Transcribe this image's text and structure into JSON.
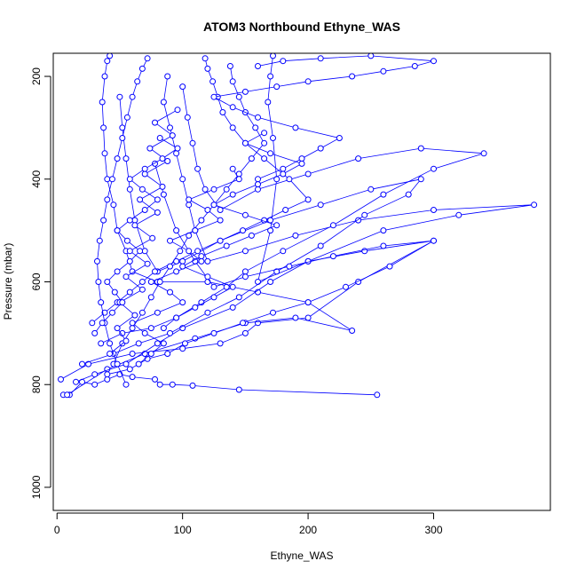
{
  "chart_data": {
    "type": "scatter",
    "title": "ATOM3 Northbound Ethyne_WAS",
    "xlabel": "Ethyne_WAS",
    "ylabel": "Pressure (mbar)",
    "xlim": [
      -3,
      393
    ],
    "ylim": [
      1045,
      155
    ],
    "y_inverted": true,
    "x_ticks": [
      0,
      100,
      200,
      300
    ],
    "y_ticks": [
      200,
      400,
      600,
      800,
      1000
    ],
    "grid": false,
    "legend": "none",
    "series_color": "#0000ff",
    "series": [
      {
        "x": [
          255,
          145,
          108,
          92,
          82,
          78,
          60,
          50,
          40,
          30,
          20,
          10,
          5
        ],
        "y": [
          820,
          810,
          802,
          800,
          800,
          790,
          785,
          780,
          790,
          800,
          795,
          820,
          820
        ]
      },
      {
        "x": [
          3,
          25,
          60,
          100,
          130,
          150,
          160,
          200,
          240,
          300,
          245,
          200,
          160,
          170,
          175,
          172,
          168,
          170,
          172
        ],
        "y": [
          790,
          760,
          740,
          730,
          720,
          700,
          680,
          670,
          600,
          520,
          540,
          560,
          600,
          500,
          400,
          320,
          250,
          200,
          160
        ]
      },
      {
        "x": [
          8,
          40,
          70,
          110,
          150,
          190,
          235,
          200,
          160,
          120,
          80,
          60,
          55,
          48,
          45,
          40,
          38,
          37,
          36,
          38,
          40,
          42
        ],
        "y": [
          820,
          770,
          740,
          710,
          680,
          670,
          695,
          640,
          620,
          600,
          600,
          580,
          540,
          500,
          450,
          400,
          350,
          300,
          250,
          200,
          170,
          160
        ]
      },
      {
        "x": [
          15,
          30,
          55,
          80,
          100,
          140,
          170,
          200,
          260,
          320,
          380,
          300,
          240,
          190,
          150,
          120,
          110,
          105,
          100,
          95,
          90,
          85,
          88
        ],
        "y": [
          795,
          780,
          760,
          720,
          690,
          650,
          600,
          560,
          500,
          470,
          450,
          460,
          480,
          510,
          540,
          560,
          500,
          450,
          400,
          350,
          300,
          250,
          200
        ]
      },
      {
        "x": [
          20,
          45,
          65,
          90,
          120,
          145,
          175,
          210,
          245,
          280,
          290,
          250,
          210,
          170,
          130,
          100,
          80,
          70,
          62,
          58,
          55,
          52,
          50
        ],
        "y": [
          760,
          740,
          720,
          700,
          660,
          630,
          580,
          530,
          470,
          430,
          400,
          420,
          450,
          480,
          520,
          560,
          580,
          540,
          480,
          420,
          360,
          300,
          240
        ]
      },
      {
        "x": [
          35,
          52,
          75,
          95,
          115,
          135,
          150,
          180,
          220,
          260,
          300,
          340,
          290,
          240,
          200,
          160,
          130,
          118,
          112,
          108,
          104,
          100
        ],
        "y": [
          720,
          700,
          690,
          670,
          640,
          610,
          580,
          540,
          490,
          430,
          380,
          350,
          340,
          360,
          390,
          420,
          460,
          420,
          380,
          330,
          280,
          220
        ]
      },
      {
        "x": [
          40,
          58,
          72,
          88,
          102,
          125,
          148,
          172,
          200,
          230,
          265,
          300,
          260,
          220,
          185,
          150,
          125,
          110,
          95,
          85,
          78
        ],
        "y": [
          780,
          770,
          750,
          740,
          720,
          700,
          680,
          660,
          640,
          610,
          570,
          520,
          530,
          550,
          570,
          590,
          610,
          560,
          500,
          430,
          370
        ]
      },
      {
        "x": [
          28,
          38,
          48,
          58,
          68,
          78,
          95,
          112,
          130,
          148,
          165,
          182,
          200,
          185,
          165,
          150,
          140,
          132,
          128,
          124,
          120,
          118
        ],
        "y": [
          680,
          660,
          640,
          620,
          600,
          580,
          560,
          540,
          520,
          500,
          480,
          460,
          440,
          400,
          360,
          330,
          300,
          270,
          240,
          210,
          185,
          165
        ]
      },
      {
        "x": [
          45,
          52,
          60,
          68,
          75,
          82,
          90,
          98,
          105,
          115,
          125,
          135,
          145,
          155,
          165,
          158,
          150,
          145,
          140,
          138
        ],
        "y": [
          760,
          720,
          690,
          660,
          630,
          600,
          570,
          540,
          510,
          480,
          450,
          420,
          390,
          360,
          330,
          300,
          270,
          240,
          210,
          180
        ]
      },
      {
        "x": [
          55,
          48,
          42,
          38,
          35,
          33,
          32,
          34,
          37,
          40,
          44,
          48,
          52,
          56,
          60,
          64,
          68,
          72
        ],
        "y": [
          800,
          760,
          720,
          680,
          640,
          600,
          560,
          520,
          480,
          440,
          400,
          360,
          320,
          280,
          240,
          210,
          185,
          165
        ]
      },
      {
        "x": [
          65,
          75,
          85,
          70,
          60,
          80,
          100,
          90,
          75,
          95,
          115,
          105,
          90,
          110,
          130,
          120,
          105,
          125,
          145,
          140
        ],
        "y": [
          760,
          740,
          720,
          700,
          680,
          660,
          640,
          620,
          600,
          580,
          560,
          540,
          520,
          500,
          480,
          460,
          440,
          420,
          400,
          380
        ]
      },
      {
        "x": [
          42,
          55,
          48,
          62,
          50,
          68,
          55,
          72,
          58,
          76,
          62,
          80,
          66,
          84,
          70,
          88,
          74,
          92,
          78,
          96
        ],
        "y": [
          740,
          715,
          690,
          665,
          640,
          615,
          590,
          565,
          540,
          515,
          490,
          465,
          440,
          415,
          390,
          365,
          340,
          315,
          290,
          265
        ]
      },
      {
        "x": [
          30,
          36,
          44,
          52,
          46,
          40,
          48,
          58,
          66,
          56,
          48,
          58,
          70,
          80,
          68,
          58,
          70,
          84,
          96,
          82
        ],
        "y": [
          700,
          680,
          660,
          640,
          620,
          600,
          580,
          560,
          540,
          520,
          500,
          480,
          460,
          440,
          420,
          400,
          380,
          360,
          340,
          320
        ]
      },
      {
        "x": [
          160,
          180,
          195,
          210,
          225,
          190,
          160,
          140,
          125,
          150,
          175,
          200,
          235,
          260,
          285,
          300,
          250,
          210,
          180,
          160
        ],
        "y": [
          400,
          380,
          360,
          340,
          320,
          300,
          280,
          260,
          240,
          230,
          220,
          210,
          200,
          190,
          180,
          170,
          160,
          165,
          170,
          180
        ]
      },
      {
        "x": [
          85,
          95,
          110,
          125,
          140,
          120,
          100,
          115,
          135,
          155,
          175,
          150,
          125,
          140,
          160,
          180,
          195,
          170,
          150,
          165
        ],
        "y": [
          690,
          670,
          650,
          630,
          610,
          590,
          570,
          550,
          530,
          510,
          490,
          470,
          450,
          430,
          410,
          390,
          370,
          350,
          330,
          310
        ]
      }
    ]
  }
}
